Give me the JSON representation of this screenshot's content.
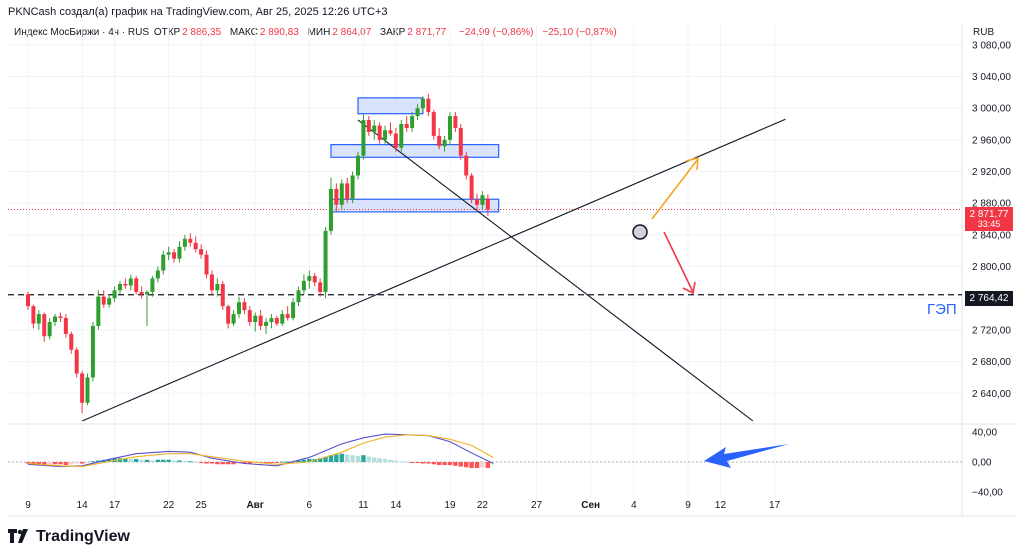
{
  "header": {
    "caption": "PKNCash создал(а) график на TradingView.com, Авг 25, 2025 12:26 UTC+3",
    "symbol": "Индекс МосБиржи · 4ч · RUS",
    "open_label": "ОТКР",
    "open": "2 886,35",
    "high_label": "МАКС",
    "high": "2 890,83",
    "low_label": "МИН",
    "low": "2 864,07",
    "close_label": "ЗАКР",
    "close": "2 871,77",
    "change": "−24,99 (−0,86%)",
    "change2": "−25,10 (−0,87%)",
    "currency": "RUB"
  },
  "price_tags": {
    "last": "2 871,77",
    "countdown": "33:45",
    "level": "2 764,42"
  },
  "gap_label": "ГЭП",
  "brand": "TradingView",
  "colors": {
    "up": "#089981",
    "up_candle": "#2e9e2e",
    "down": "#f23645",
    "blue": "#2962ff",
    "zone": "#c9d7fb",
    "orange": "#f5a623",
    "macd": "#5b4fcf",
    "signal": "#f0b323"
  },
  "chart_data": {
    "type": "candlestick",
    "y_axis": {
      "range": [
        2605,
        3105
      ],
      "ticks": [
        3080,
        3040,
        3000,
        2960,
        2920,
        2880,
        2840,
        2800,
        2760,
        2720,
        2680,
        2640
      ],
      "tick_labels": [
        "3 080,00",
        "3 040,00",
        "3 000,00",
        "2 960,00",
        "2 920,00",
        "2 880,00",
        "2 840,00",
        "2 800,00",
        "2 760,00",
        "2 720,00",
        "2 680,00",
        "2 640,00"
      ]
    },
    "x_axis": {
      "ticks": [
        "9",
        "14",
        "17",
        "22",
        "25",
        "Авг",
        "6",
        "11",
        "14",
        "19",
        "22",
        "27",
        "Сен",
        "4",
        "9",
        "12",
        "17"
      ],
      "tick_day_index": [
        0,
        5,
        8,
        13,
        16,
        21,
        26,
        31,
        34,
        39,
        42,
        47,
        52,
        56,
        61,
        64,
        69
      ]
    },
    "candles": [
      {
        "d": 0.0,
        "o": 2765,
        "h": 2768,
        "l": 2745,
        "c": 2750
      },
      {
        "d": 0.5,
        "o": 2750,
        "h": 2752,
        "l": 2722,
        "c": 2728
      },
      {
        "d": 1.0,
        "o": 2728,
        "h": 2745,
        "l": 2720,
        "c": 2740
      },
      {
        "d": 1.5,
        "o": 2740,
        "h": 2742,
        "l": 2705,
        "c": 2712
      },
      {
        "d": 2.0,
        "o": 2712,
        "h": 2735,
        "l": 2708,
        "c": 2730
      },
      {
        "d": 2.5,
        "o": 2730,
        "h": 2740,
        "l": 2725,
        "c": 2737
      },
      {
        "d": 3.0,
        "o": 2737,
        "h": 2742,
        "l": 2730,
        "c": 2735
      },
      {
        "d": 3.5,
        "o": 2735,
        "h": 2740,
        "l": 2710,
        "c": 2715
      },
      {
        "d": 4.0,
        "o": 2715,
        "h": 2718,
        "l": 2690,
        "c": 2695
      },
      {
        "d": 4.5,
        "o": 2695,
        "h": 2698,
        "l": 2660,
        "c": 2665
      },
      {
        "d": 5.0,
        "o": 2665,
        "h": 2668,
        "l": 2615,
        "c": 2628
      },
      {
        "d": 5.5,
        "o": 2628,
        "h": 2665,
        "l": 2625,
        "c": 2660
      },
      {
        "d": 6.0,
        "o": 2660,
        "h": 2730,
        "l": 2655,
        "c": 2725
      },
      {
        "d": 6.5,
        "o": 2725,
        "h": 2770,
        "l": 2720,
        "c": 2762
      },
      {
        "d": 7.0,
        "o": 2762,
        "h": 2770,
        "l": 2748,
        "c": 2752
      },
      {
        "d": 7.5,
        "o": 2752,
        "h": 2765,
        "l": 2748,
        "c": 2760
      },
      {
        "d": 8.0,
        "o": 2760,
        "h": 2775,
        "l": 2755,
        "c": 2770
      },
      {
        "d": 8.5,
        "o": 2770,
        "h": 2782,
        "l": 2765,
        "c": 2778
      },
      {
        "d": 9.0,
        "o": 2778,
        "h": 2785,
        "l": 2772,
        "c": 2776
      },
      {
        "d": 9.5,
        "o": 2776,
        "h": 2790,
        "l": 2770,
        "c": 2785
      },
      {
        "d": 10.0,
        "o": 2785,
        "h": 2788,
        "l": 2765,
        "c": 2768
      },
      {
        "d": 10.5,
        "o": 2768,
        "h": 2775,
        "l": 2760,
        "c": 2765
      },
      {
        "d": 11.0,
        "o": 2765,
        "h": 2770,
        "l": 2725,
        "c": 2768
      },
      {
        "d": 11.5,
        "o": 2768,
        "h": 2788,
        "l": 2762,
        "c": 2785
      },
      {
        "d": 12.0,
        "o": 2785,
        "h": 2800,
        "l": 2780,
        "c": 2795
      },
      {
        "d": 12.5,
        "o": 2795,
        "h": 2820,
        "l": 2790,
        "c": 2815
      },
      {
        "d": 13.0,
        "o": 2815,
        "h": 2825,
        "l": 2808,
        "c": 2818
      },
      {
        "d": 13.5,
        "o": 2818,
        "h": 2822,
        "l": 2805,
        "c": 2810
      },
      {
        "d": 14.0,
        "o": 2810,
        "h": 2832,
        "l": 2805,
        "c": 2825
      },
      {
        "d": 14.5,
        "o": 2825,
        "h": 2840,
        "l": 2820,
        "c": 2835
      },
      {
        "d": 15.0,
        "o": 2835,
        "h": 2842,
        "l": 2825,
        "c": 2830
      },
      {
        "d": 15.5,
        "o": 2830,
        "h": 2838,
        "l": 2818,
        "c": 2822
      },
      {
        "d": 16.0,
        "o": 2822,
        "h": 2828,
        "l": 2810,
        "c": 2815
      },
      {
        "d": 16.5,
        "o": 2815,
        "h": 2820,
        "l": 2785,
        "c": 2790
      },
      {
        "d": 17.0,
        "o": 2790,
        "h": 2795,
        "l": 2765,
        "c": 2770
      },
      {
        "d": 17.5,
        "o": 2770,
        "h": 2785,
        "l": 2762,
        "c": 2778
      },
      {
        "d": 18.0,
        "o": 2778,
        "h": 2782,
        "l": 2745,
        "c": 2750
      },
      {
        "d": 18.5,
        "o": 2750,
        "h": 2752,
        "l": 2722,
        "c": 2728
      },
      {
        "d": 19.0,
        "o": 2728,
        "h": 2745,
        "l": 2725,
        "c": 2740
      },
      {
        "d": 19.5,
        "o": 2740,
        "h": 2762,
        "l": 2735,
        "c": 2755
      },
      {
        "d": 20.0,
        "o": 2755,
        "h": 2760,
        "l": 2740,
        "c": 2745
      },
      {
        "d": 20.5,
        "o": 2745,
        "h": 2750,
        "l": 2725,
        "c": 2730
      },
      {
        "d": 21.0,
        "o": 2730,
        "h": 2742,
        "l": 2718,
        "c": 2738
      },
      {
        "d": 21.5,
        "o": 2738,
        "h": 2745,
        "l": 2720,
        "c": 2725
      },
      {
        "d": 22.0,
        "o": 2725,
        "h": 2735,
        "l": 2715,
        "c": 2730
      },
      {
        "d": 22.5,
        "o": 2730,
        "h": 2740,
        "l": 2722,
        "c": 2735
      },
      {
        "d": 23.0,
        "o": 2735,
        "h": 2738,
        "l": 2725,
        "c": 2728
      },
      {
        "d": 23.5,
        "o": 2728,
        "h": 2745,
        "l": 2725,
        "c": 2740
      },
      {
        "d": 24.0,
        "o": 2740,
        "h": 2750,
        "l": 2732,
        "c": 2735
      },
      {
        "d": 24.5,
        "o": 2735,
        "h": 2760,
        "l": 2732,
        "c": 2755
      },
      {
        "d": 25.0,
        "o": 2755,
        "h": 2775,
        "l": 2750,
        "c": 2770
      },
      {
        "d": 25.5,
        "o": 2770,
        "h": 2790,
        "l": 2765,
        "c": 2782
      },
      {
        "d": 26.0,
        "o": 2782,
        "h": 2795,
        "l": 2772,
        "c": 2788
      },
      {
        "d": 26.5,
        "o": 2788,
        "h": 2792,
        "l": 2775,
        "c": 2780
      },
      {
        "d": 27.0,
        "o": 2780,
        "h": 2785,
        "l": 2762,
        "c": 2768
      },
      {
        "d": 27.5,
        "o": 2768,
        "h": 2850,
        "l": 2760,
        "c": 2845
      },
      {
        "d": 28.0,
        "o": 2845,
        "h": 2912,
        "l": 2840,
        "c": 2898
      },
      {
        "d": 28.5,
        "o": 2898,
        "h": 2905,
        "l": 2870,
        "c": 2878
      },
      {
        "d": 29.0,
        "o": 2878,
        "h": 2910,
        "l": 2872,
        "c": 2905
      },
      {
        "d": 29.5,
        "o": 2905,
        "h": 2912,
        "l": 2880,
        "c": 2885
      },
      {
        "d": 30.0,
        "o": 2885,
        "h": 2920,
        "l": 2880,
        "c": 2915
      },
      {
        "d": 30.5,
        "o": 2915,
        "h": 2945,
        "l": 2910,
        "c": 2940
      },
      {
        "d": 31.0,
        "o": 2940,
        "h": 2992,
        "l": 2935,
        "c": 2985
      },
      {
        "d": 31.5,
        "o": 2985,
        "h": 2990,
        "l": 2965,
        "c": 2970
      },
      {
        "d": 32.0,
        "o": 2970,
        "h": 2985,
        "l": 2960,
        "c": 2978
      },
      {
        "d": 32.5,
        "o": 2978,
        "h": 2982,
        "l": 2955,
        "c": 2960
      },
      {
        "d": 33.0,
        "o": 2960,
        "h": 2978,
        "l": 2955,
        "c": 2972
      },
      {
        "d": 33.5,
        "o": 2972,
        "h": 2982,
        "l": 2965,
        "c": 2968
      },
      {
        "d": 34.0,
        "o": 2968,
        "h": 2975,
        "l": 2945,
        "c": 2950
      },
      {
        "d": 34.5,
        "o": 2950,
        "h": 2985,
        "l": 2945,
        "c": 2980
      },
      {
        "d": 35.0,
        "o": 2980,
        "h": 2990,
        "l": 2970,
        "c": 2975
      },
      {
        "d": 35.5,
        "o": 2975,
        "h": 2995,
        "l": 2970,
        "c": 2990
      },
      {
        "d": 36.0,
        "o": 2990,
        "h": 3005,
        "l": 2985,
        "c": 3000
      },
      {
        "d": 36.5,
        "o": 3000,
        "h": 3015,
        "l": 2995,
        "c": 3012
      },
      {
        "d": 37.0,
        "o": 3012,
        "h": 3018,
        "l": 2990,
        "c": 2995
      },
      {
        "d": 37.5,
        "o": 2995,
        "h": 2998,
        "l": 2960,
        "c": 2965
      },
      {
        "d": 38.0,
        "o": 2965,
        "h": 2975,
        "l": 2948,
        "c": 2952
      },
      {
        "d": 38.5,
        "o": 2952,
        "h": 2965,
        "l": 2945,
        "c": 2960
      },
      {
        "d": 39.0,
        "o": 2960,
        "h": 2995,
        "l": 2955,
        "c": 2990
      },
      {
        "d": 39.5,
        "o": 2990,
        "h": 2995,
        "l": 2970,
        "c": 2975
      },
      {
        "d": 40.0,
        "o": 2975,
        "h": 2980,
        "l": 2935,
        "c": 2940
      },
      {
        "d": 40.5,
        "o": 2940,
        "h": 2945,
        "l": 2910,
        "c": 2915
      },
      {
        "d": 41.0,
        "o": 2915,
        "h": 2918,
        "l": 2880,
        "c": 2885
      },
      {
        "d": 41.5,
        "o": 2885,
        "h": 2892,
        "l": 2870,
        "c": 2878
      },
      {
        "d": 42.0,
        "o": 2878,
        "h": 2895,
        "l": 2872,
        "c": 2890
      },
      {
        "d": 42.5,
        "o": 2886,
        "h": 2891,
        "l": 2864,
        "c": 2872
      }
    ],
    "horizontal_level": 2764.42,
    "zones": [
      {
        "d1": 30.5,
        "d2": 36.5,
        "lo": 2993,
        "hi": 3013
      },
      {
        "d1": 28.0,
        "d2": 43.5,
        "lo": 2938,
        "hi": 2954
      },
      {
        "d1": 28.0,
        "d2": 43.5,
        "lo": 2869,
        "hi": 2885
      }
    ],
    "trendlines": [
      {
        "d1": 5.0,
        "p1": 2605,
        "d2": 70.0,
        "p2": 2986
      },
      {
        "d1": 30.5,
        "p1": 2985,
        "d2": 67.0,
        "p2": 2605
      }
    ],
    "macd": {
      "y_range": [
        -45,
        45
      ],
      "ticks": [
        40,
        0,
        -40
      ],
      "tick_labels": [
        "40,00",
        "0,00",
        "−40,00"
      ],
      "macd_line": [
        [
          0,
          -3
        ],
        [
          3,
          -6
        ],
        [
          5,
          -5
        ],
        [
          8,
          5
        ],
        [
          10,
          11
        ],
        [
          13,
          14
        ],
        [
          15,
          13
        ],
        [
          17,
          5
        ],
        [
          20,
          -2
        ],
        [
          23,
          -5
        ],
        [
          26,
          6
        ],
        [
          29,
          24
        ],
        [
          31,
          32
        ],
        [
          33,
          37
        ],
        [
          35,
          36
        ],
        [
          37,
          35
        ],
        [
          39,
          27
        ],
        [
          41,
          12
        ],
        [
          43,
          -2
        ]
      ],
      "signal_line": [
        [
          0,
          -2
        ],
        [
          3,
          -5
        ],
        [
          5,
          -6
        ],
        [
          8,
          2
        ],
        [
          10,
          7
        ],
        [
          13,
          11
        ],
        [
          15,
          11
        ],
        [
          17,
          7
        ],
        [
          20,
          1
        ],
        [
          23,
          -3
        ],
        [
          26,
          0
        ],
        [
          29,
          13
        ],
        [
          31,
          25
        ],
        [
          33,
          33
        ],
        [
          35,
          36
        ],
        [
          37,
          35
        ],
        [
          39,
          30
        ],
        [
          41,
          22
        ],
        [
          43,
          6
        ]
      ],
      "histogram": [
        {
          "d": 0.0,
          "v": -2
        },
        {
          "d": 0.5,
          "v": -3
        },
        {
          "d": 1.0,
          "v": -4
        },
        {
          "d": 1.5,
          "v": -4
        },
        {
          "d": 2.0,
          "v": -3
        },
        {
          "d": 2.5,
          "v": -3
        },
        {
          "d": 3.0,
          "v": -3
        },
        {
          "d": 3.5,
          "v": -4
        },
        {
          "d": 4.0,
          "v": -3
        },
        {
          "d": 4.5,
          "v": -2
        },
        {
          "d": 5.0,
          "v": -2
        },
        {
          "d": 5.5,
          "v": -1
        },
        {
          "d": 6.0,
          "v": 1
        },
        {
          "d": 6.5,
          "v": 2
        },
        {
          "d": 7.0,
          "v": 3
        },
        {
          "d": 7.5,
          "v": 4
        },
        {
          "d": 8.0,
          "v": 5
        },
        {
          "d": 8.5,
          "v": 5
        },
        {
          "d": 9.0,
          "v": 5
        },
        {
          "d": 9.5,
          "v": 4
        },
        {
          "d": 10.0,
          "v": 4
        },
        {
          "d": 10.5,
          "v": 3
        },
        {
          "d": 11.0,
          "v": 3
        },
        {
          "d": 11.5,
          "v": 2
        },
        {
          "d": 12.0,
          "v": 3
        },
        {
          "d": 12.5,
          "v": 3
        },
        {
          "d": 13.0,
          "v": 3
        },
        {
          "d": 13.5,
          "v": 2
        },
        {
          "d": 14.0,
          "v": 2
        },
        {
          "d": 14.5,
          "v": 1
        },
        {
          "d": 15.0,
          "v": 1
        },
        {
          "d": 15.5,
          "v": 0.5
        },
        {
          "d": 16.0,
          "v": -1
        },
        {
          "d": 16.5,
          "v": -2
        },
        {
          "d": 17.0,
          "v": -2
        },
        {
          "d": 17.5,
          "v": -3
        },
        {
          "d": 18.0,
          "v": -3
        },
        {
          "d": 18.5,
          "v": -3
        },
        {
          "d": 19.0,
          "v": -3
        },
        {
          "d": 19.5,
          "v": -2
        },
        {
          "d": 20.0,
          "v": -2
        },
        {
          "d": 20.5,
          "v": -2
        },
        {
          "d": 21.0,
          "v": -1
        },
        {
          "d": 21.5,
          "v": -1
        },
        {
          "d": 22.0,
          "v": -1
        },
        {
          "d": 22.5,
          "v": -1
        },
        {
          "d": 23.0,
          "v": -1
        },
        {
          "d": 23.5,
          "v": 0.5
        },
        {
          "d": 24.0,
          "v": 0.5
        },
        {
          "d": 24.5,
          "v": 1
        },
        {
          "d": 25.0,
          "v": 2
        },
        {
          "d": 25.5,
          "v": 3
        },
        {
          "d": 26.0,
          "v": 4
        },
        {
          "d": 26.5,
          "v": 4
        },
        {
          "d": 27.0,
          "v": 5
        },
        {
          "d": 27.5,
          "v": 7
        },
        {
          "d": 28.0,
          "v": 9
        },
        {
          "d": 28.5,
          "v": 10
        },
        {
          "d": 29.0,
          "v": 11
        },
        {
          "d": 29.5,
          "v": 10
        },
        {
          "d": 30.0,
          "v": 9
        },
        {
          "d": 30.5,
          "v": 8
        },
        {
          "d": 31.0,
          "v": 9
        },
        {
          "d": 31.5,
          "v": 7
        },
        {
          "d": 32.0,
          "v": 6
        },
        {
          "d": 32.5,
          "v": 5
        },
        {
          "d": 33.0,
          "v": 4
        },
        {
          "d": 33.5,
          "v": 3
        },
        {
          "d": 34.0,
          "v": 2
        },
        {
          "d": 34.5,
          "v": 1
        },
        {
          "d": 35.0,
          "v": 0.5
        },
        {
          "d": 35.5,
          "v": -1
        },
        {
          "d": 36.0,
          "v": -1
        },
        {
          "d": 36.5,
          "v": -2
        },
        {
          "d": 37.0,
          "v": -2
        },
        {
          "d": 37.5,
          "v": -3
        },
        {
          "d": 38.0,
          "v": -4
        },
        {
          "d": 38.5,
          "v": -4
        },
        {
          "d": 39.0,
          "v": -4
        },
        {
          "d": 39.5,
          "v": -5
        },
        {
          "d": 40.0,
          "v": -6
        },
        {
          "d": 40.5,
          "v": -7
        },
        {
          "d": 41.0,
          "v": -8
        },
        {
          "d": 41.5,
          "v": -8
        },
        {
          "d": 42.0,
          "v": -7
        },
        {
          "d": 42.5,
          "v": -8
        }
      ]
    }
  }
}
